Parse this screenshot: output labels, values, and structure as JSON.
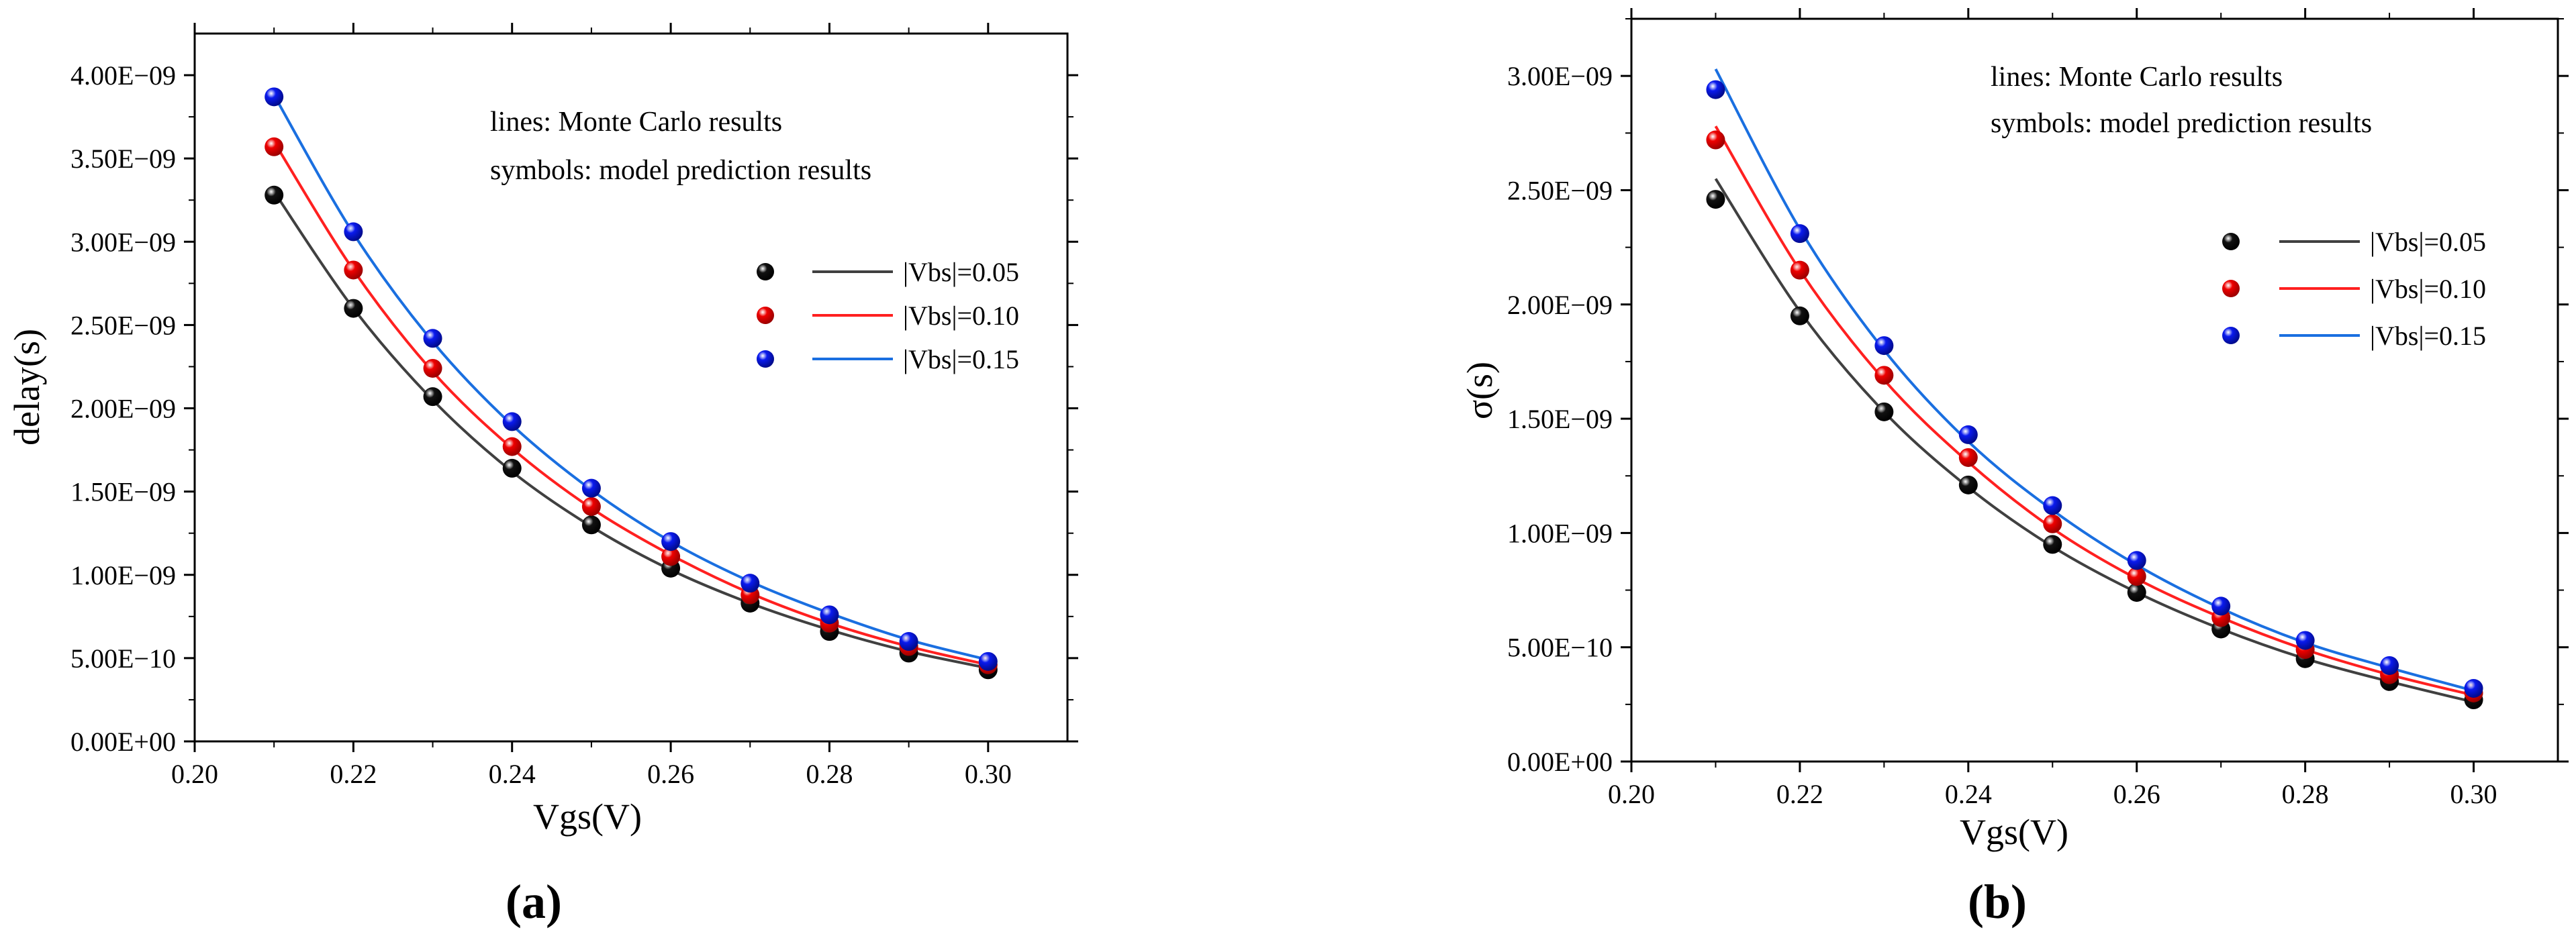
{
  "chart_data": [
    {
      "type": "line",
      "panel_label": "(a)",
      "title": "",
      "xlabel": "Vgs(V)",
      "ylabel": "delay(s)",
      "xlim": [
        0.2,
        0.31
      ],
      "ylim": [
        0,
        4.25e-09
      ],
      "x_ticks": [
        0.2,
        0.22,
        0.24,
        0.26,
        0.28,
        0.3
      ],
      "x_tick_labels": [
        "0.20",
        "0.22",
        "0.24",
        "0.26",
        "0.28",
        "0.30"
      ],
      "y_ticks": [
        0,
        5e-10,
        1e-09,
        1.5e-09,
        2e-09,
        2.5e-09,
        3e-09,
        3.5e-09,
        4e-09
      ],
      "y_tick_labels": [
        "0.00E+00",
        "5.00E−10",
        "1.00E−09",
        "1.50E−09",
        "2.00E−09",
        "2.50E−09",
        "3.00E−09",
        "3.50E−09",
        "4.00E−09"
      ],
      "annotations": [
        "lines: Monte Carlo results",
        "symbols: model prediction results"
      ],
      "legend_position": "right",
      "x": [
        0.21,
        0.22,
        0.23,
        0.24,
        0.25,
        0.26,
        0.27,
        0.28,
        0.29,
        0.3
      ],
      "series": [
        {
          "name": "|Vbs|=0.05",
          "color": "#404040",
          "marker_color": "#111111",
          "line": [
            3.3e-09,
            2.6e-09,
            2.05e-09,
            1.62e-09,
            1.29e-09,
            1.03e-09,
            8.3e-10,
            6.7e-10,
            5.4e-10,
            4.4e-10
          ],
          "symbols": [
            3.28e-09,
            2.6e-09,
            2.07e-09,
            1.64e-09,
            1.3e-09,
            1.04e-09,
            8.3e-10,
            6.6e-10,
            5.3e-10,
            4.3e-10
          ]
        },
        {
          "name": "|Vbs|=0.10",
          "color": "#ff2020",
          "marker_color": "#ee0000",
          "line": [
            3.6e-09,
            2.83e-09,
            2.22e-09,
            1.76e-09,
            1.4e-09,
            1.12e-09,
            8.9e-10,
            7.1e-10,
            5.7e-10,
            4.6e-10
          ],
          "symbols": [
            3.57e-09,
            2.83e-09,
            2.24e-09,
            1.77e-09,
            1.41e-09,
            1.11e-09,
            8.8e-10,
            7.1e-10,
            5.7e-10,
            4.6e-10
          ]
        },
        {
          "name": "|Vbs|=0.15",
          "color": "#1a6fe0",
          "marker_color": "#0a1aee",
          "line": [
            3.88e-09,
            3.05e-09,
            2.4e-09,
            1.9e-09,
            1.51e-09,
            1.2e-09,
            9.6e-10,
            7.7e-10,
            6.1e-10,
            4.9e-10
          ],
          "symbols": [
            3.87e-09,
            3.06e-09,
            2.42e-09,
            1.92e-09,
            1.52e-09,
            1.2e-09,
            9.5e-10,
            7.6e-10,
            6e-10,
            4.8e-10
          ]
        }
      ]
    },
    {
      "type": "line",
      "panel_label": "(b)",
      "title": "",
      "xlabel": "Vgs(V)",
      "ylabel": "σ(s)",
      "xlim": [
        0.2,
        0.31
      ],
      "ylim": [
        0,
        3.25e-09
      ],
      "x_ticks": [
        0.2,
        0.22,
        0.24,
        0.26,
        0.28,
        0.3
      ],
      "x_tick_labels": [
        "0.20",
        "0.22",
        "0.24",
        "0.26",
        "0.28",
        "0.30"
      ],
      "y_ticks": [
        0,
        5e-10,
        1e-09,
        1.5e-09,
        2e-09,
        2.5e-09,
        3e-09
      ],
      "y_tick_labels": [
        "0.00E+00",
        "5.00E−10",
        "1.00E−09",
        "1.50E−09",
        "2.00E−09",
        "2.50E−09",
        "3.00E−09"
      ],
      "annotations": [
        "lines: Monte Carlo results",
        "symbols: model prediction results"
      ],
      "legend_position": "right",
      "x": [
        0.21,
        0.22,
        0.23,
        0.24,
        0.25,
        0.26,
        0.27,
        0.28,
        0.29,
        0.3
      ],
      "series": [
        {
          "name": "|Vbs|=0.05",
          "color": "#404040",
          "marker_color": "#111111",
          "line": [
            2.55e-09,
            1.97e-09,
            1.53e-09,
            1.2e-09,
            9.4e-10,
            7.4e-10,
            5.8e-10,
            4.5e-10,
            3.5e-10,
            2.6e-10
          ],
          "symbols": [
            2.46e-09,
            1.95e-09,
            1.53e-09,
            1.21e-09,
            9.5e-10,
            7.4e-10,
            5.8e-10,
            4.5e-10,
            3.5e-10,
            2.7e-10
          ]
        },
        {
          "name": "|Vbs|=0.10",
          "color": "#ff2020",
          "marker_color": "#ee0000",
          "line": [
            2.78e-09,
            2.15e-09,
            1.67e-09,
            1.31e-09,
            1.02e-09,
            8e-10,
            6.3e-10,
            4.9e-10,
            3.8e-10,
            2.9e-10
          ],
          "symbols": [
            2.72e-09,
            2.15e-09,
            1.69e-09,
            1.33e-09,
            1.04e-09,
            8.1e-10,
            6.3e-10,
            4.9e-10,
            3.8e-10,
            3e-10
          ]
        },
        {
          "name": "|Vbs|=0.15",
          "color": "#1a6fe0",
          "marker_color": "#0a1aee",
          "line": [
            3.03e-09,
            2.33e-09,
            1.8e-09,
            1.4e-09,
            1.1e-09,
            8.6e-10,
            6.7e-10,
            5.2e-10,
            4.1e-10,
            3.1e-10
          ],
          "symbols": [
            2.94e-09,
            2.31e-09,
            1.82e-09,
            1.43e-09,
            1.12e-09,
            8.8e-10,
            6.8e-10,
            5.3e-10,
            4.2e-10,
            3.2e-10
          ]
        }
      ]
    }
  ]
}
